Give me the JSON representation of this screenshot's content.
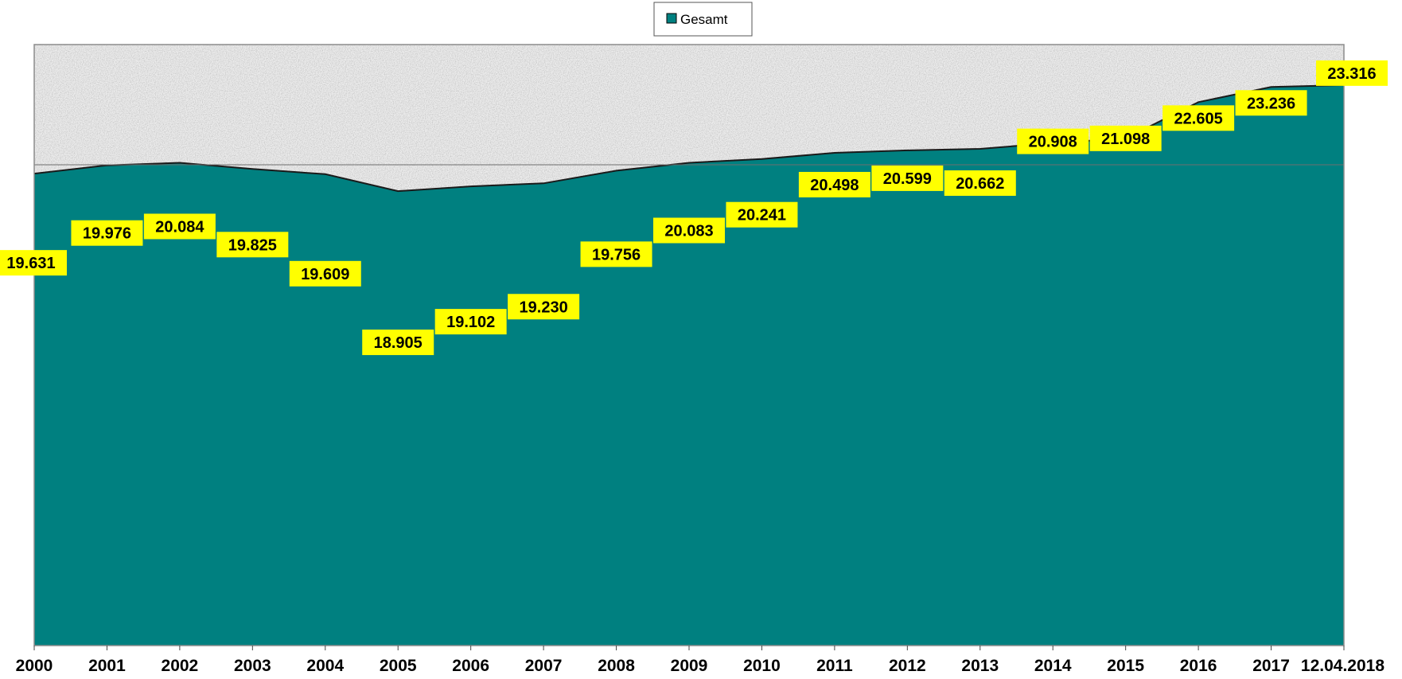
{
  "chart_data": {
    "type": "area",
    "categories": [
      "2000",
      "2001",
      "2002",
      "2003",
      "2004",
      "2005",
      "2006",
      "2007",
      "2008",
      "2009",
      "2010",
      "2011",
      "2012",
      "2013",
      "2014",
      "2015",
      "2016",
      "2017",
      "12.04.2018"
    ],
    "series": [
      {
        "name": "Gesamt",
        "values": [
          19631,
          19976,
          20084,
          19825,
          19609,
          18905,
          19102,
          19230,
          19756,
          20083,
          20241,
          20498,
          20599,
          20662,
          20908,
          21098,
          22605,
          23236,
          23316
        ],
        "labels": [
          "19.631",
          "19.976",
          "20.084",
          "19.825",
          "19.609",
          "18.905",
          "19.102",
          "19.230",
          "19.756",
          "20.083",
          "20.241",
          "20.498",
          "20.599",
          "20.662",
          "20.908",
          "21.098",
          "22.605",
          "23.236",
          "23.316"
        ]
      }
    ],
    "ylim": [
      0,
      25000
    ],
    "reference_line": 20000,
    "grid": false,
    "legend_position": "top-center",
    "colors": {
      "area": "#008080",
      "outline": "#1a1a1a",
      "plot_background": "#e8e8e8",
      "label_background": "#ffff00"
    }
  }
}
